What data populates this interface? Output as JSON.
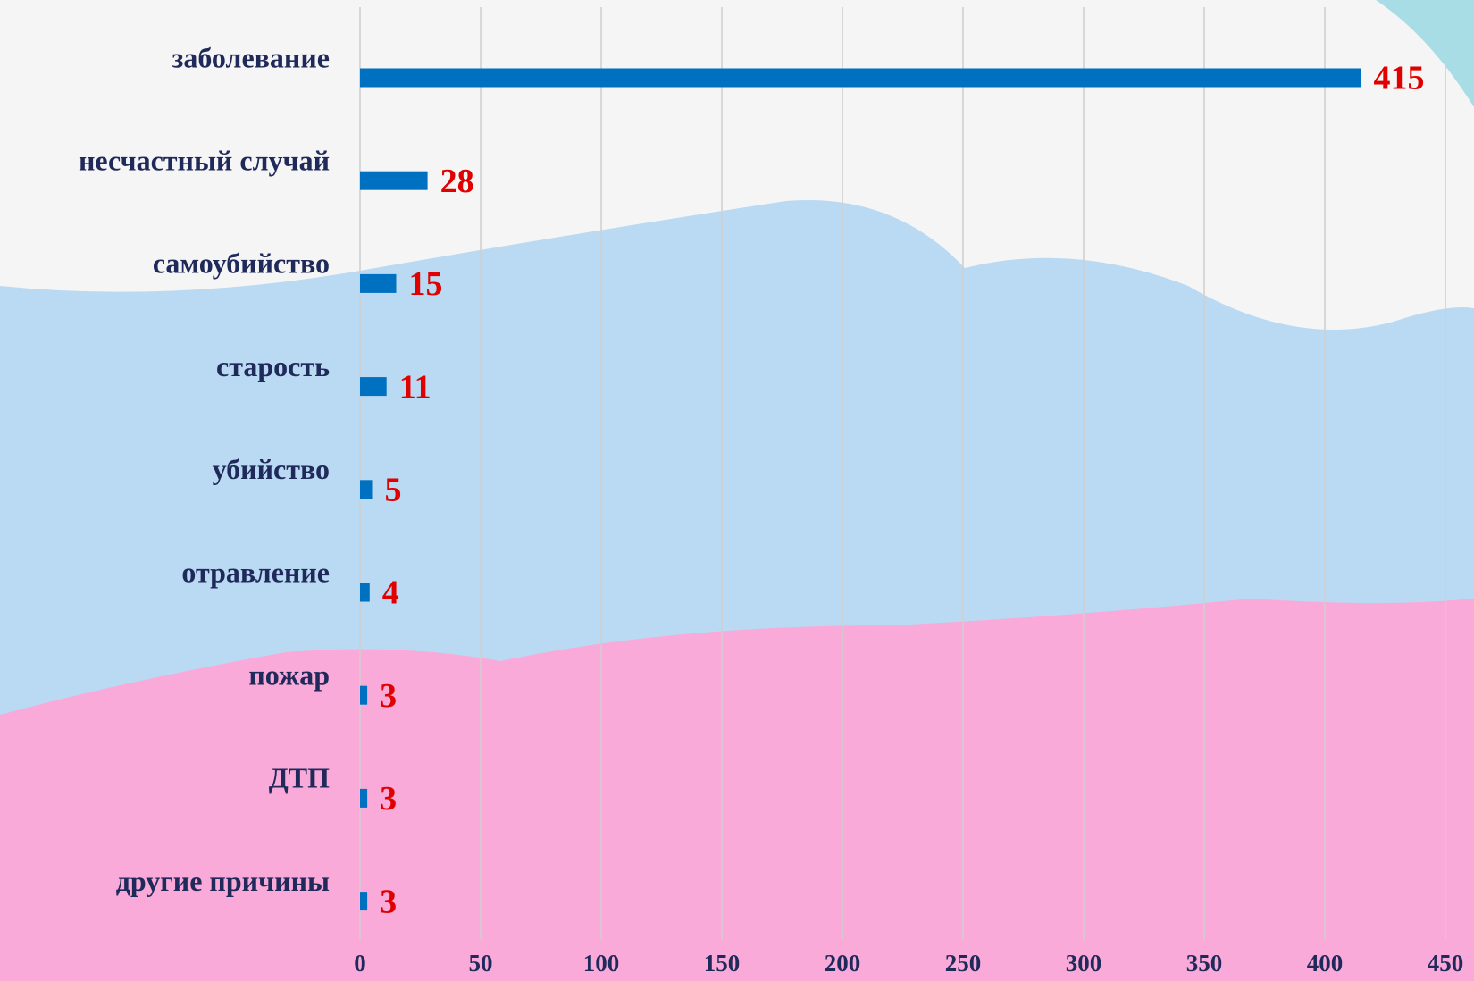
{
  "chart_data": {
    "type": "barh",
    "categories": [
      "заболевание",
      "несчастный случай",
      "самоубийство",
      "старость",
      "убийство",
      "отравление",
      "пожар",
      "ДТП",
      "другие причины"
    ],
    "values": [
      415,
      28,
      15,
      11,
      5,
      4,
      3,
      3,
      3
    ],
    "color": "#0070c0",
    "xlim": [
      0,
      450
    ],
    "xticks": [
      0,
      50,
      100,
      150,
      200,
      250,
      300,
      350,
      400,
      450
    ],
    "grid": true
  }
}
